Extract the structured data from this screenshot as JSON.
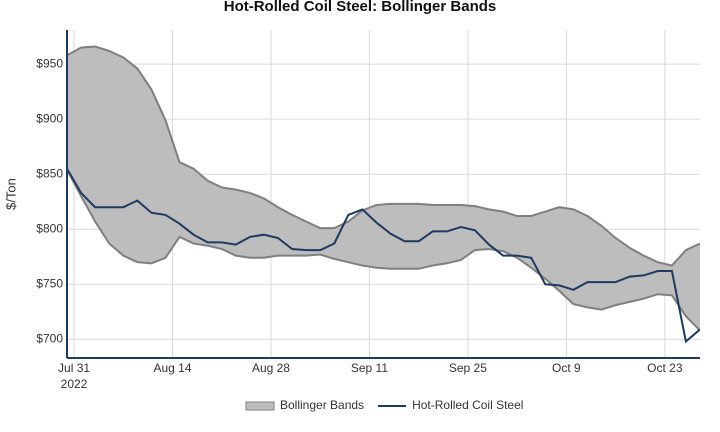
{
  "chart_data": {
    "type": "line",
    "title": "Hot-Rolled Coil Steel: Bollinger Bands",
    "y_label": "$/Ton",
    "x": [
      "2022-07-30",
      "2022-08-01",
      "2022-08-03",
      "2022-08-05",
      "2022-08-07",
      "2022-08-09",
      "2022-08-11",
      "2022-08-13",
      "2022-08-15",
      "2022-08-17",
      "2022-08-19",
      "2022-08-21",
      "2022-08-23",
      "2022-08-25",
      "2022-08-27",
      "2022-08-29",
      "2022-08-31",
      "2022-09-02",
      "2022-09-04",
      "2022-09-06",
      "2022-09-08",
      "2022-09-10",
      "2022-09-12",
      "2022-09-14",
      "2022-09-16",
      "2022-09-18",
      "2022-09-20",
      "2022-09-22",
      "2022-09-24",
      "2022-09-26",
      "2022-09-28",
      "2022-09-30",
      "2022-10-02",
      "2022-10-04",
      "2022-10-06",
      "2022-10-08",
      "2022-10-10",
      "2022-10-12",
      "2022-10-14",
      "2022-10-16",
      "2022-10-18",
      "2022-10-20",
      "2022-10-22",
      "2022-10-24",
      "2022-10-26",
      "2022-10-28"
    ],
    "series": [
      {
        "name": "Bollinger Bands",
        "kind": "band",
        "color": "#bdbdbd",
        "edge_color": "#7f7f7f",
        "upper": [
          958,
          965,
          966,
          962,
          956,
          946,
          927,
          899,
          861,
          855,
          844,
          838,
          836,
          833,
          828,
          820,
          813,
          807,
          801,
          801,
          807,
          817,
          822,
          823,
          823,
          823,
          822,
          822,
          822,
          821,
          818,
          816,
          812,
          812,
          816,
          820,
          818,
          812,
          803,
          792,
          783,
          776,
          770,
          767,
          781,
          787
        ],
        "lower": [
          854,
          830,
          807,
          787,
          776,
          770,
          769,
          774,
          793,
          787,
          785,
          782,
          776,
          774,
          774,
          776,
          776,
          776,
          777,
          773,
          770,
          767,
          765,
          764,
          764,
          764,
          767,
          769,
          772,
          781,
          782,
          780,
          774,
          765,
          755,
          744,
          732,
          729,
          727,
          731,
          734,
          737,
          741,
          740,
          721,
          708
        ]
      },
      {
        "name": "Hot-Rolled Coil Steel",
        "kind": "line",
        "color": "#1f3a60",
        "values": [
          855,
          833,
          820,
          820,
          820,
          826,
          815,
          813,
          805,
          795,
          788,
          788,
          786,
          793,
          795,
          792,
          782,
          781,
          781,
          787,
          813,
          818,
          806,
          796,
          789,
          789,
          798,
          798,
          802,
          799,
          786,
          776,
          776,
          774,
          750,
          749,
          745,
          752,
          752,
          752,
          757,
          758,
          762,
          762,
          698,
          709
        ]
      }
    ],
    "xlim": [
      "2022-07-30",
      "2022-10-28"
    ],
    "xticks": [
      {
        "value": "2022-07-31",
        "label": "Jul 31",
        "sublabel": "2022"
      },
      {
        "value": "2022-08-14",
        "label": "Aug 14"
      },
      {
        "value": "2022-08-28",
        "label": "Aug 28"
      },
      {
        "value": "2022-09-11",
        "label": "Sep 11"
      },
      {
        "value": "2022-09-25",
        "label": "Sep 25"
      },
      {
        "value": "2022-10-09",
        "label": "Oct 9"
      },
      {
        "value": "2022-10-23",
        "label": "Oct 23"
      }
    ],
    "ylim": [
      683,
      981
    ],
    "yticks": [
      {
        "value": 700,
        "label": "$700"
      },
      {
        "value": 750,
        "label": "$750"
      },
      {
        "value": 800,
        "label": "$800"
      },
      {
        "value": 850,
        "label": "$850"
      },
      {
        "value": 900,
        "label": "$900"
      },
      {
        "value": 950,
        "label": "$950"
      }
    ],
    "grid": true,
    "legend": "bottom"
  }
}
